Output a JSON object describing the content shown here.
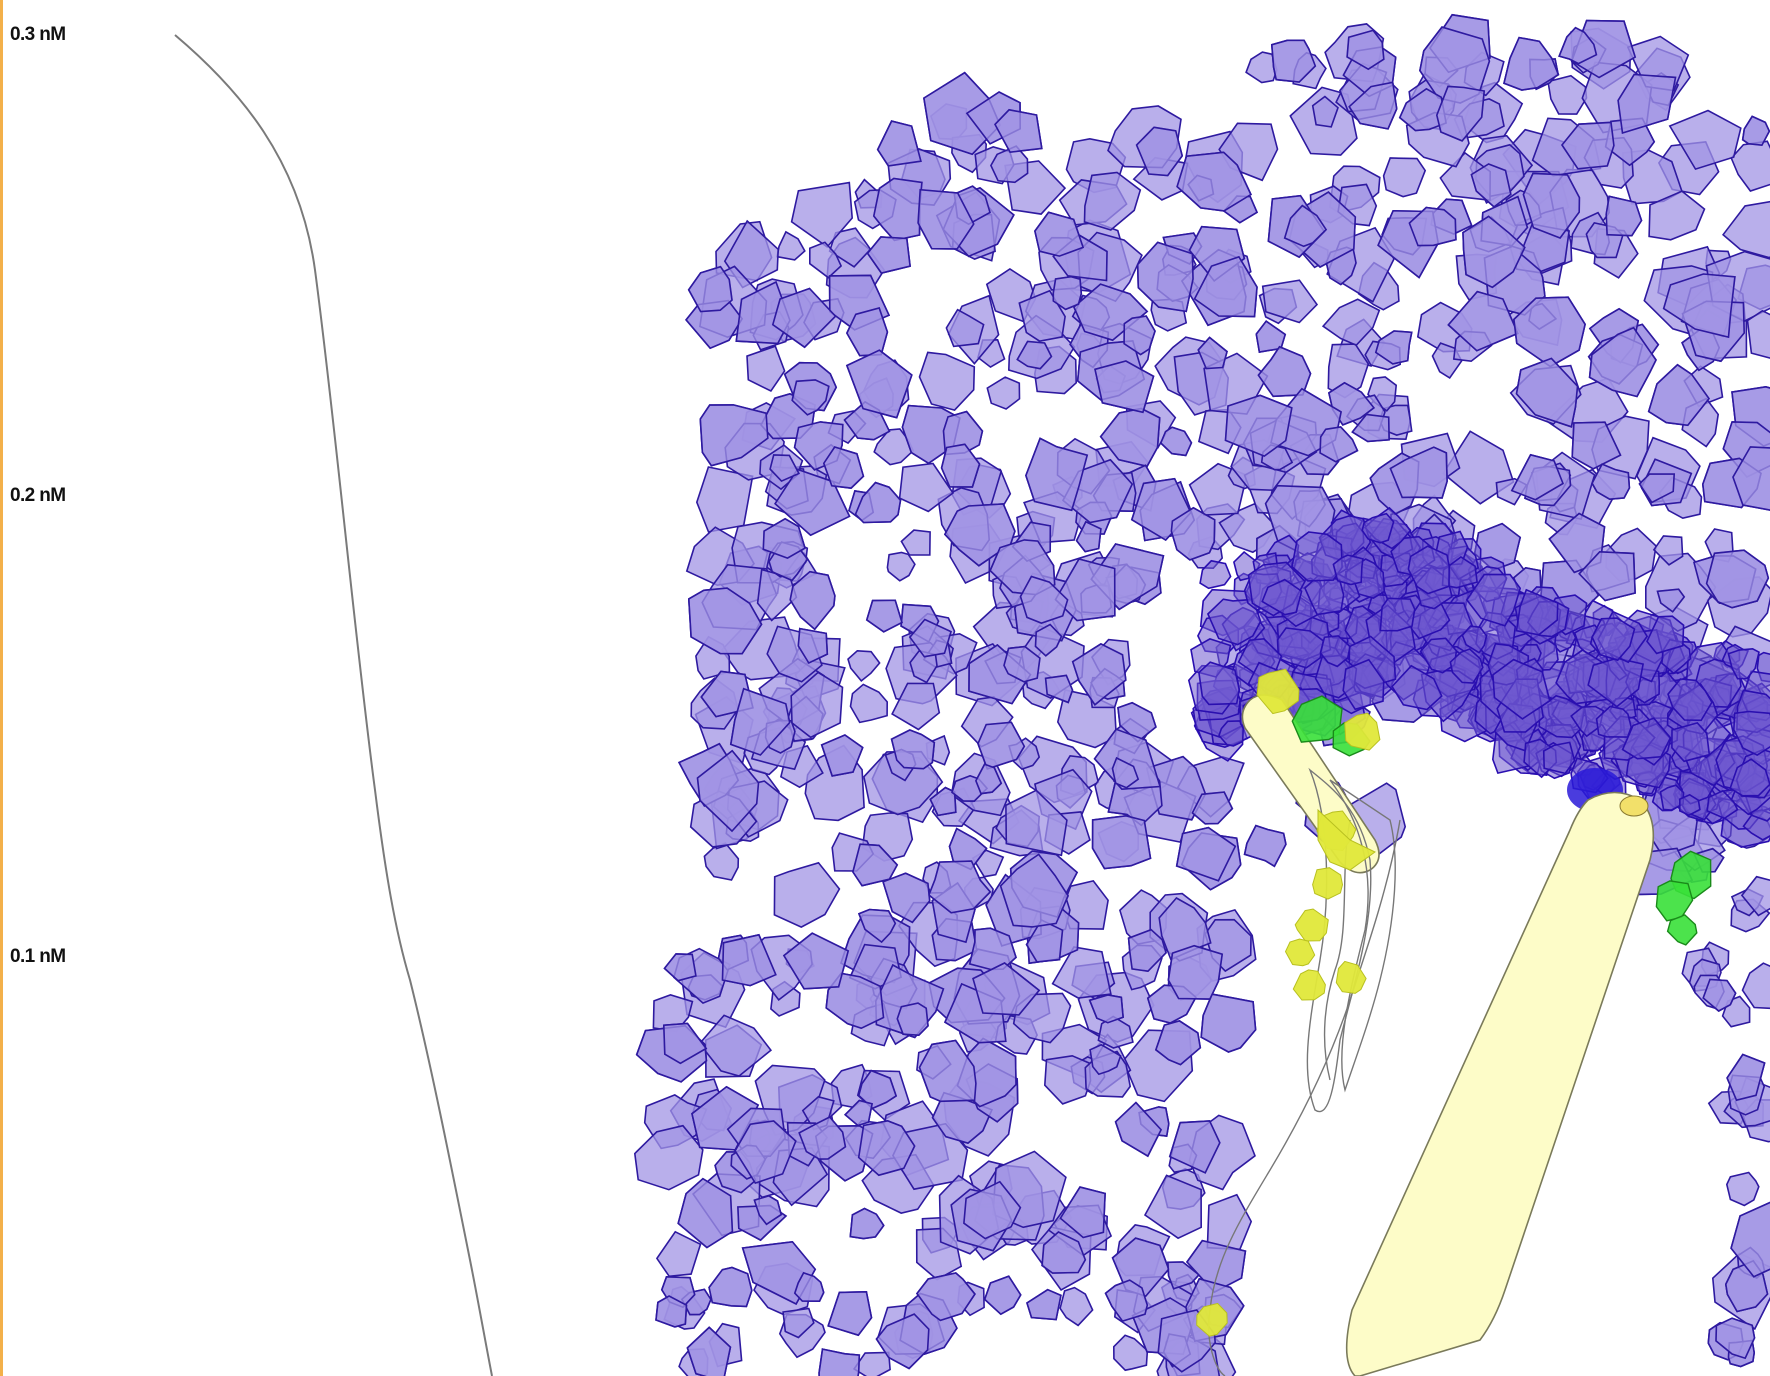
{
  "chart_data": {
    "type": "scatter",
    "title": "",
    "xlabel": "",
    "ylabel": "",
    "y_axis": {
      "ticks": [
        "0.3 nM",
        "0.2 nM",
        "0.1 nM"
      ],
      "tick_values": [
        0.3,
        0.2,
        0.1
      ],
      "unit": "nM"
    },
    "concentration_curve": {
      "description": "gray concentration profile line along the left side",
      "color": "#7a7a7a"
    },
    "cell_types": [
      {
        "name": "",
        "color_fill": "#a294e4",
        "color_stroke": "#2e1aa0"
      },
      {
        "name": "",
        "color_fill": "#38e038",
        "color_stroke": "#1a8a1a"
      },
      {
        "name": "",
        "color_fill": "#e0e83a",
        "color_stroke": "#b8c020"
      },
      {
        "name": "",
        "color_fill": "#fdfcc8",
        "color_stroke": "#7a7a5a"
      }
    ],
    "grid": false,
    "legend": "none"
  },
  "colors": {
    "left_border": "#f3b04a",
    "background": "#ffffff",
    "deep_cluster": "#2a0fb0"
  }
}
